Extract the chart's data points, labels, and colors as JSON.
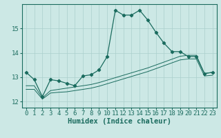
{
  "xlabel": "Humidex (Indice chaleur)",
  "ylabel": "",
  "background_color": "#cce8e5",
  "line_color": "#1a6b5e",
  "grid_color": "#aacfcc",
  "xlim": [
    -0.5,
    23.5
  ],
  "ylim": [
    11.75,
    16.0
  ],
  "yticks": [
    12,
    13,
    14,
    15
  ],
  "xticks": [
    0,
    1,
    2,
    3,
    4,
    5,
    6,
    7,
    8,
    9,
    10,
    11,
    12,
    13,
    14,
    15,
    16,
    17,
    18,
    19,
    20,
    21,
    22,
    23
  ],
  "line1_x": [
    0,
    1,
    2,
    3,
    4,
    5,
    6,
    7,
    8,
    9,
    10,
    11,
    12,
    13,
    14,
    15,
    16,
    17,
    18,
    19,
    20,
    21,
    22,
    23
  ],
  "line1_y": [
    13.2,
    12.9,
    12.2,
    12.9,
    12.85,
    12.75,
    12.65,
    13.05,
    13.1,
    13.3,
    13.85,
    15.75,
    15.55,
    15.55,
    15.75,
    15.35,
    14.85,
    14.4,
    14.05,
    14.05,
    13.85,
    13.85,
    13.15,
    13.2
  ],
  "line2_x": [
    0,
    1,
    2,
    3,
    4,
    5,
    6,
    7,
    8,
    9,
    10,
    11,
    12,
    13,
    14,
    15,
    16,
    17,
    18,
    19,
    20,
    21,
    22,
    23
  ],
  "line2_y": [
    12.65,
    12.65,
    12.15,
    12.45,
    12.5,
    12.55,
    12.6,
    12.65,
    12.7,
    12.78,
    12.88,
    12.98,
    13.08,
    13.18,
    13.28,
    13.38,
    13.5,
    13.62,
    13.74,
    13.86,
    13.9,
    13.9,
    13.15,
    13.2
  ],
  "line3_x": [
    0,
    1,
    2,
    3,
    4,
    5,
    6,
    7,
    8,
    9,
    10,
    11,
    12,
    13,
    14,
    15,
    16,
    17,
    18,
    19,
    20,
    21,
    22,
    23
  ],
  "line3_y": [
    12.5,
    12.5,
    12.1,
    12.35,
    12.38,
    12.4,
    12.45,
    12.5,
    12.55,
    12.63,
    12.73,
    12.83,
    12.93,
    13.03,
    13.13,
    13.23,
    13.35,
    13.47,
    13.59,
    13.71,
    13.75,
    13.75,
    13.05,
    13.08
  ],
  "tick_fontsize": 6.5,
  "label_fontsize": 7.5
}
